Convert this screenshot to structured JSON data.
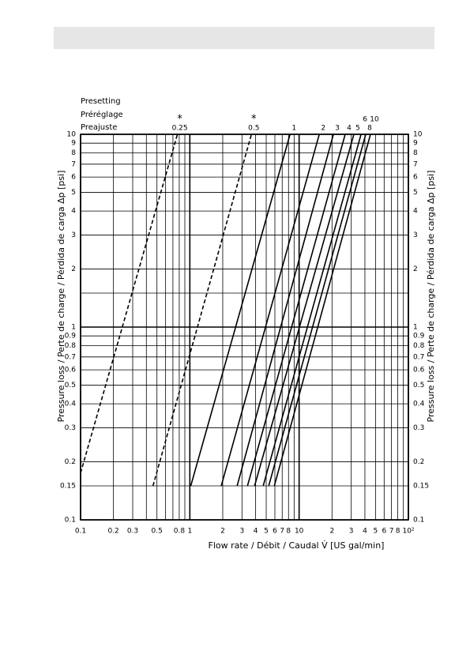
{
  "chart_data": {
    "type": "line",
    "legend_title": [
      "Presetting",
      "Préréglage",
      "Preajuste"
    ],
    "xlabel": "Flow rate / Débit / Caudal V̇ [US gal/min]",
    "ylabel": "Pressure loss / Perte de charge / Pérdida de carga Δp [psi]",
    "xscale": "log",
    "yscale": "log",
    "grid": true,
    "color": "#000000",
    "xlim": [
      0.1,
      100
    ],
    "ylim": [
      0.1,
      10
    ],
    "xticks": [
      0.1,
      0.2,
      0.3,
      0.5,
      0.8,
      1,
      2,
      3,
      4,
      5,
      6,
      7,
      8,
      10,
      {
        "value": 20,
        "label": "2"
      },
      {
        "value": 30,
        "label": "3"
      },
      {
        "value": 40,
        "label": "4"
      },
      {
        "value": 50,
        "label": "5"
      },
      {
        "value": 60,
        "label": "6"
      },
      {
        "value": 70,
        "label": "7"
      },
      {
        "value": 80,
        "label": "8"
      },
      {
        "value": 100,
        "label": "10²"
      }
    ],
    "minor_xticks": [
      0.4,
      0.6,
      0.7,
      0.9,
      9,
      90
    ],
    "yticks": [
      0.1,
      0.15,
      0.2,
      0.3,
      0.4,
      0.5,
      0.6,
      0.7,
      0.8,
      0.9,
      1,
      2,
      3,
      4,
      5,
      6,
      7,
      8,
      9,
      10
    ],
    "minor_yticks": [
      1.5
    ],
    "series": [
      {
        "name": "0.25",
        "note": "*",
        "dashed": true,
        "x": [
          0.1,
          0.77
        ],
        "values": [
          0.175,
          10
        ]
      },
      {
        "name": "0.5",
        "note": "*",
        "dashed": true,
        "x": [
          0.46,
          3.66
        ],
        "values": [
          0.15,
          10
        ]
      },
      {
        "name": "1",
        "x": [
          1.02,
          8.26
        ],
        "values": [
          0.15,
          10
        ]
      },
      {
        "name": "2",
        "x": [
          1.94,
          15.3
        ],
        "values": [
          0.15,
          10
        ]
      },
      {
        "name": "3",
        "x": [
          2.71,
          20.6
        ],
        "values": [
          0.15,
          10
        ]
      },
      {
        "name": "4",
        "x": [
          3.37,
          26.4
        ],
        "values": [
          0.15,
          10
        ]
      },
      {
        "name": "5",
        "x": [
          3.91,
          31.7
        ],
        "values": [
          0.15,
          10
        ]
      },
      {
        "name": "6",
        "x": [
          4.69,
          36.9
        ],
        "values": [
          0.15,
          10
        ]
      },
      {
        "name": "8",
        "x": [
          5.27,
          40.7
        ],
        "values": [
          0.15,
          10
        ]
      },
      {
        "name": "10",
        "x": [
          5.93,
          45
        ],
        "values": [
          0.15,
          10
        ]
      }
    ]
  }
}
